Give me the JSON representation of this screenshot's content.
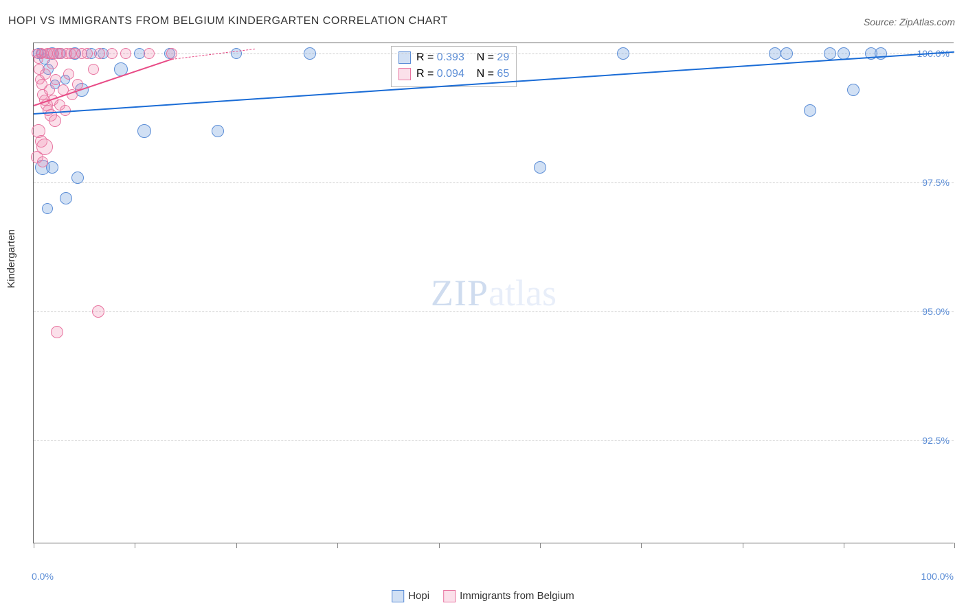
{
  "title": "HOPI VS IMMIGRANTS FROM BELGIUM KINDERGARTEN CORRELATION CHART",
  "source": "Source: ZipAtlas.com",
  "y_axis_label": "Kindergarten",
  "watermark_zip": "ZIP",
  "watermark_atlas": "atlas",
  "xlim": [
    0,
    100
  ],
  "ylim": [
    90.5,
    100.2
  ],
  "x_ticks_percent": [
    0,
    11,
    22,
    33,
    44,
    55,
    66,
    77,
    88,
    100
  ],
  "x_start_label": "0.0%",
  "x_end_label": "100.0%",
  "y_ticks": [
    {
      "value": 100.0,
      "label": "100.0%"
    },
    {
      "value": 97.5,
      "label": "97.5%"
    },
    {
      "value": 95.0,
      "label": "95.0%"
    },
    {
      "value": 92.5,
      "label": "92.5%"
    }
  ],
  "series": {
    "blue": {
      "name": "Hopi",
      "color": "#5b8dd6",
      "fill": "rgba(122,167,224,0.35)",
      "R": "0.393",
      "N": "29",
      "points": [
        {
          "x": 0.5,
          "y": 100.0,
          "r": 8
        },
        {
          "x": 0.8,
          "y": 100.0,
          "r": 7
        },
        {
          "x": 1.2,
          "y": 99.9,
          "r": 8
        },
        {
          "x": 1.6,
          "y": 99.7,
          "r": 8
        },
        {
          "x": 2.0,
          "y": 100.0,
          "r": 9
        },
        {
          "x": 2.3,
          "y": 99.4,
          "r": 7
        },
        {
          "x": 2.8,
          "y": 100.0,
          "r": 8
        },
        {
          "x": 3.4,
          "y": 99.5,
          "r": 7
        },
        {
          "x": 4.5,
          "y": 100.0,
          "r": 9
        },
        {
          "x": 5.2,
          "y": 99.3,
          "r": 10
        },
        {
          "x": 6.3,
          "y": 100.0,
          "r": 8
        },
        {
          "x": 7.5,
          "y": 100.0,
          "r": 8
        },
        {
          "x": 9.5,
          "y": 99.7,
          "r": 10
        },
        {
          "x": 11.5,
          "y": 100.0,
          "r": 8
        },
        {
          "x": 12.0,
          "y": 98.5,
          "r": 10
        },
        {
          "x": 14.8,
          "y": 100.0,
          "r": 8
        },
        {
          "x": 20.0,
          "y": 98.5,
          "r": 9
        },
        {
          "x": 22.0,
          "y": 100.0,
          "r": 8
        },
        {
          "x": 30.0,
          "y": 100.0,
          "r": 9
        },
        {
          "x": 55.0,
          "y": 97.8,
          "r": 9
        },
        {
          "x": 64.0,
          "y": 100.0,
          "r": 9
        },
        {
          "x": 80.5,
          "y": 100.0,
          "r": 9
        },
        {
          "x": 81.8,
          "y": 100.0,
          "r": 9
        },
        {
          "x": 84.3,
          "y": 98.9,
          "r": 9
        },
        {
          "x": 86.5,
          "y": 100.0,
          "r": 9
        },
        {
          "x": 88.0,
          "y": 100.0,
          "r": 9
        },
        {
          "x": 89.0,
          "y": 99.3,
          "r": 9
        },
        {
          "x": 91.0,
          "y": 100.0,
          "r": 9
        },
        {
          "x": 92.0,
          "y": 100.0,
          "r": 9
        },
        {
          "x": 1.0,
          "y": 97.8,
          "r": 11
        },
        {
          "x": 2.0,
          "y": 97.8,
          "r": 9
        },
        {
          "x": 3.5,
          "y": 97.2,
          "r": 9
        },
        {
          "x": 4.8,
          "y": 97.6,
          "r": 9
        },
        {
          "x": 1.5,
          "y": 97.0,
          "r": 8
        }
      ],
      "trend": {
        "x1": 0,
        "y1": 98.85,
        "x2": 100,
        "y2": 100.05
      }
    },
    "pink": {
      "name": "Immigrants from Belgium",
      "color": "#e874a0",
      "fill": "rgba(238,132,170,0.25)",
      "R": "0.094",
      "N": "65",
      "points": [
        {
          "x": 0.3,
          "y": 100.0,
          "r": 7
        },
        {
          "x": 0.5,
          "y": 99.9,
          "r": 7
        },
        {
          "x": 0.6,
          "y": 99.7,
          "r": 8
        },
        {
          "x": 0.7,
          "y": 99.5,
          "r": 7
        },
        {
          "x": 0.8,
          "y": 100.0,
          "r": 8
        },
        {
          "x": 0.9,
          "y": 99.4,
          "r": 8
        },
        {
          "x": 1.0,
          "y": 99.2,
          "r": 8
        },
        {
          "x": 1.1,
          "y": 100.0,
          "r": 7
        },
        {
          "x": 1.2,
          "y": 99.1,
          "r": 8
        },
        {
          "x": 1.3,
          "y": 99.6,
          "r": 8
        },
        {
          "x": 1.4,
          "y": 99.0,
          "r": 9
        },
        {
          "x": 1.5,
          "y": 100.0,
          "r": 8
        },
        {
          "x": 1.6,
          "y": 98.9,
          "r": 8
        },
        {
          "x": 1.7,
          "y": 99.3,
          "r": 8
        },
        {
          "x": 1.8,
          "y": 100.0,
          "r": 8
        },
        {
          "x": 1.9,
          "y": 98.8,
          "r": 9
        },
        {
          "x": 2.0,
          "y": 99.8,
          "r": 8
        },
        {
          "x": 2.1,
          "y": 99.1,
          "r": 8
        },
        {
          "x": 2.2,
          "y": 100.0,
          "r": 8
        },
        {
          "x": 2.3,
          "y": 98.7,
          "r": 9
        },
        {
          "x": 2.4,
          "y": 99.5,
          "r": 8
        },
        {
          "x": 2.6,
          "y": 100.0,
          "r": 8
        },
        {
          "x": 2.8,
          "y": 99.0,
          "r": 8
        },
        {
          "x": 3.0,
          "y": 100.0,
          "r": 8
        },
        {
          "x": 3.2,
          "y": 99.3,
          "r": 8
        },
        {
          "x": 3.4,
          "y": 98.9,
          "r": 8
        },
        {
          "x": 3.6,
          "y": 100.0,
          "r": 8
        },
        {
          "x": 3.8,
          "y": 99.6,
          "r": 8
        },
        {
          "x": 4.0,
          "y": 100.0,
          "r": 8
        },
        {
          "x": 4.2,
          "y": 99.2,
          "r": 8
        },
        {
          "x": 4.5,
          "y": 100.0,
          "r": 8
        },
        {
          "x": 4.8,
          "y": 99.4,
          "r": 8
        },
        {
          "x": 5.2,
          "y": 100.0,
          "r": 8
        },
        {
          "x": 5.8,
          "y": 100.0,
          "r": 8
        },
        {
          "x": 6.5,
          "y": 99.7,
          "r": 8
        },
        {
          "x": 7.2,
          "y": 100.0,
          "r": 8
        },
        {
          "x": 8.5,
          "y": 100.0,
          "r": 8
        },
        {
          "x": 10.0,
          "y": 100.0,
          "r": 8
        },
        {
          "x": 12.5,
          "y": 100.0,
          "r": 8
        },
        {
          "x": 15.0,
          "y": 100.0,
          "r": 8
        },
        {
          "x": 0.5,
          "y": 98.5,
          "r": 10
        },
        {
          "x": 0.8,
          "y": 98.3,
          "r": 9
        },
        {
          "x": 1.2,
          "y": 98.2,
          "r": 12
        },
        {
          "x": 0.4,
          "y": 98.0,
          "r": 9
        },
        {
          "x": 1.0,
          "y": 97.9,
          "r": 8
        },
        {
          "x": 2.5,
          "y": 94.6,
          "r": 9
        },
        {
          "x": 7.0,
          "y": 95.0,
          "r": 9
        }
      ],
      "trend": {
        "x1": 0,
        "y1": 99.0,
        "x2": 15,
        "y2": 99.9
      },
      "trend_dash": {
        "x1": 15,
        "y1": 99.9,
        "x2": 24,
        "y2": 100.1
      }
    }
  },
  "legend_stats": {
    "R_label": "R =",
    "N_label": "N ="
  },
  "bottom_legend": {
    "blue": "Hopi",
    "pink": "Immigrants from Belgium"
  }
}
